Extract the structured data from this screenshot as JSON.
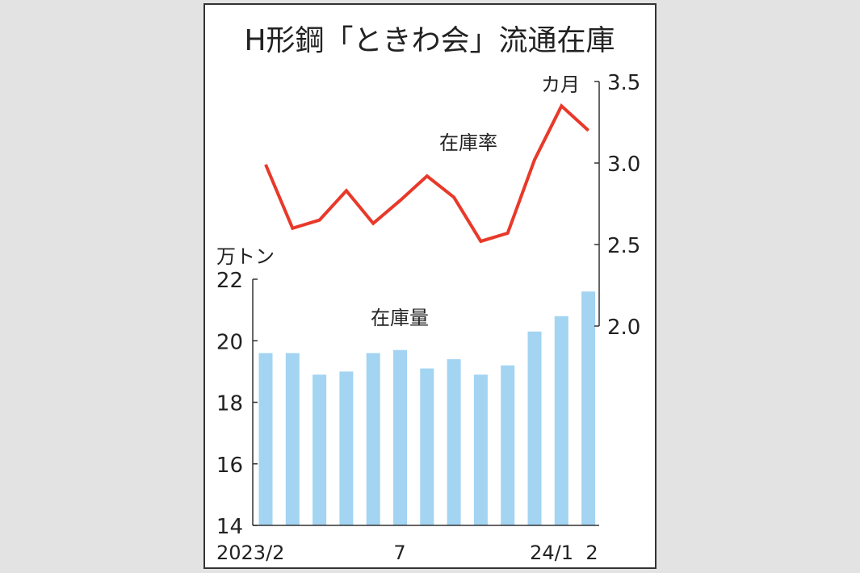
{
  "chart_data": {
    "type": "bar+line",
    "title": "H形鋼「ときわ会」流通在庫",
    "categories": [
      "2023/2",
      "2023/3",
      "2023/4",
      "2023/5",
      "2023/6",
      "2023/7",
      "2023/8",
      "2023/9",
      "2023/10",
      "2023/11",
      "2023/12",
      "2024/1",
      "2024/2"
    ],
    "x_tick_labels": [
      "2023/2",
      "7",
      "24/1",
      "2"
    ],
    "left_axis": {
      "unit": "万トン",
      "ylim": [
        14,
        22
      ],
      "ticks": [
        "14",
        "16",
        "18",
        "20",
        "22"
      ]
    },
    "right_axis": {
      "unit": "カ月",
      "ylim": [
        2.0,
        3.5
      ],
      "ticks": [
        "2.0",
        "2.5",
        "3.0",
        "3.5"
      ]
    },
    "series": [
      {
        "name": "在庫量",
        "type": "bar",
        "axis": "left",
        "color": "#a3d4f2",
        "values": [
          19.6,
          19.6,
          18.9,
          19.0,
          19.6,
          19.7,
          19.1,
          19.4,
          18.9,
          19.2,
          20.3,
          20.8,
          21.6
        ]
      },
      {
        "name": "在庫率",
        "type": "line",
        "axis": "right",
        "color": "#e8392a",
        "values": [
          2.99,
          2.6,
          2.65,
          2.83,
          2.63,
          2.77,
          2.92,
          2.79,
          2.52,
          2.57,
          3.02,
          3.35,
          3.2
        ]
      }
    ],
    "grid": false
  }
}
